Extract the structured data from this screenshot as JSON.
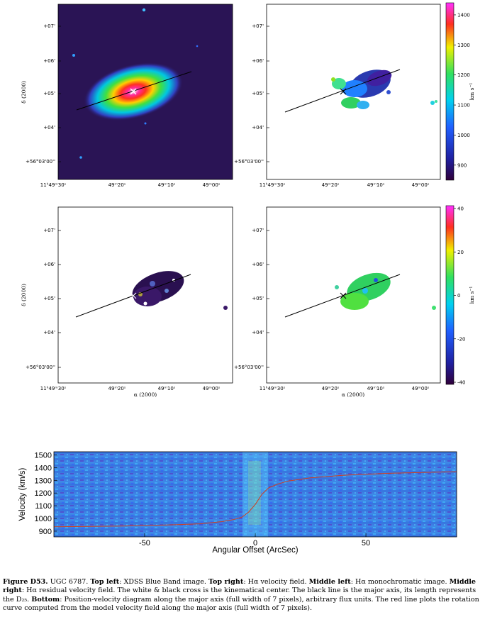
{
  "panels": {
    "ra_ticks": [
      "11ʰ49ᵐ30ˢ",
      "49ᵐ20ˢ",
      "49ᵐ10ˢ",
      "49ᵐ00ˢ"
    ],
    "dec_ticks": [
      "+56°03'00''",
      "+04'",
      "+05'",
      "+06'",
      "+07'"
    ],
    "dec_label": "δ (2000)",
    "ra_label": "α (2000)",
    "velocity_colorbar": {
      "ticks": [
        "900",
        "1000",
        "1100",
        "1200",
        "1300",
        "1400"
      ],
      "unit": "km s⁻¹"
    },
    "residual_colorbar": {
      "ticks": [
        "-40",
        "-20",
        "0",
        "20",
        "40"
      ],
      "unit": "km s⁻¹"
    }
  },
  "chart_data": {
    "type": "heatmap",
    "xlabel": "Angular Offset (ArcSec)",
    "ylabel": "Velocity (km/s)",
    "xlim": [
      -91,
      91
    ],
    "ylim": [
      855,
      1525
    ],
    "xticks": [
      "-50",
      "0",
      "50"
    ],
    "yticks": [
      "900",
      "1000",
      "1100",
      "1200",
      "1300",
      "1400",
      "1500"
    ],
    "rotation_curve": {
      "x": [
        -91,
        -60,
        -40,
        -25,
        -15,
        -10,
        -6,
        -3,
        0,
        3,
        6,
        10,
        15,
        25,
        40,
        60,
        91
      ],
      "y": [
        935,
        940,
        948,
        958,
        975,
        990,
        1010,
        1050,
        1110,
        1190,
        1240,
        1270,
        1295,
        1320,
        1340,
        1355,
        1368
      ]
    }
  },
  "caption": {
    "figure_label": "Figure D53.",
    "galaxy": "UGC 6787.",
    "tl_label": "Top left",
    "tl_text": ": XDSS Blue Band image.",
    "tr_label": "Top right",
    "tr_text": ": Hα velocity field.",
    "ml_label": "Middle left",
    "ml_text": ": Hα monochromatic image.",
    "mr_label": "Middle right",
    "mr_text": ": Hα residual velocity field. The white & black cross is the kinematical center. The black line is the major axis, its length represents the D₂₅.",
    "bottom_label": "Bottom",
    "bottom_text": ": Position-velocity diagram along the major axis (full width of 7 pixels), arbitrary flux units. The red line plots the rotation curve computed from the model velocity field along the major axis (full width of 7 pixels)."
  }
}
